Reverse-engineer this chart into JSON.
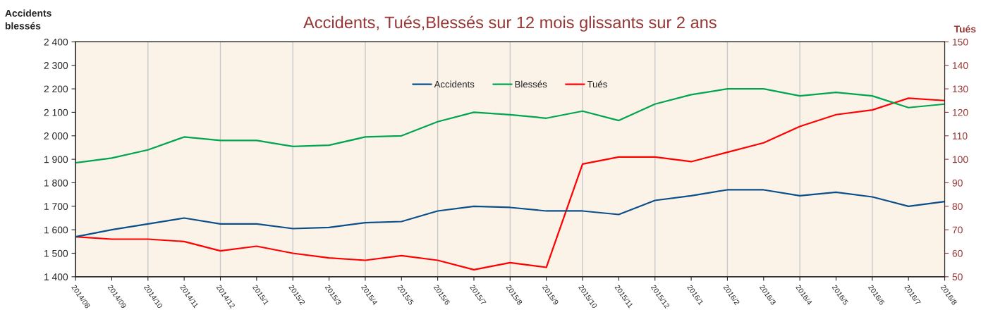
{
  "chart_data": {
    "type": "line",
    "title": "Accidents, Tués,Blessés sur 12 mois glissants sur 2 ans",
    "ylabel": "Accidents\nblessés",
    "y2label": "Tués",
    "categories": [
      "2014/08",
      "2014/09",
      "2014/10",
      "2014/11",
      "2014/12",
      "2015/1",
      "2015/2",
      "2015/3",
      "2015/4",
      "2015/5",
      "2015/6",
      "2015/7",
      "2015/8",
      "2015/9",
      "2015/10",
      "2015/11",
      "2015/12",
      "2016/1",
      "2016/2",
      "2016/3",
      "2016/4",
      "2016/5",
      "2016/6",
      "2016/7",
      "2016/8"
    ],
    "series": [
      {
        "name": "Accidents",
        "color": "#0b4f8a",
        "values": [
          1570,
          1600,
          1625,
          1650,
          1625,
          1625,
          1605,
          1610,
          1630,
          1635,
          1680,
          1700,
          1695,
          1680,
          1680,
          1665,
          1725,
          1745,
          1770,
          1770,
          1745,
          1760,
          1740,
          1700,
          1720
        ]
      },
      {
        "name": "Blessés",
        "color": "#00a550",
        "values": [
          1885,
          1905,
          1940,
          1995,
          1980,
          1980,
          1955,
          1960,
          1995,
          2000,
          2060,
          2100,
          2090,
          2075,
          2105,
          2065,
          2135,
          2175,
          2200,
          2200,
          2170,
          2185,
          2170,
          2120,
          2135
        ]
      },
      {
        "name": "Tués",
        "color": "#ff0000",
        "axis": "y2",
        "values": [
          67,
          66,
          66,
          65,
          61,
          63,
          60,
          58,
          57,
          59,
          57,
          53,
          56,
          54,
          98,
          101,
          101,
          99,
          103,
          107,
          114,
          119,
          121,
          126,
          125
        ]
      }
    ],
    "ylim": [
      1400,
      2400
    ],
    "yticks": [
      {
        "value": 1400,
        "label": "1 400"
      },
      {
        "value": 1500,
        "label": "1 500"
      },
      {
        "value": 1600,
        "label": "1 600"
      },
      {
        "value": 1700,
        "label": "1 700"
      },
      {
        "value": 1800,
        "label": "1 800"
      },
      {
        "value": 1900,
        "label": "1 900"
      },
      {
        "value": 2000,
        "label": "2 000"
      },
      {
        "value": 2100,
        "label": "2 100"
      },
      {
        "value": 2200,
        "label": "2 200"
      },
      {
        "value": 2300,
        "label": "2 300"
      },
      {
        "value": 2400,
        "label": "2 400"
      }
    ],
    "y2lim": [
      50,
      150
    ],
    "y2ticks": [
      50,
      60,
      70,
      80,
      90,
      100,
      110,
      120,
      130,
      140,
      150
    ],
    "grid": "x",
    "legend": "top",
    "marker": "none",
    "line_style": "solid"
  }
}
